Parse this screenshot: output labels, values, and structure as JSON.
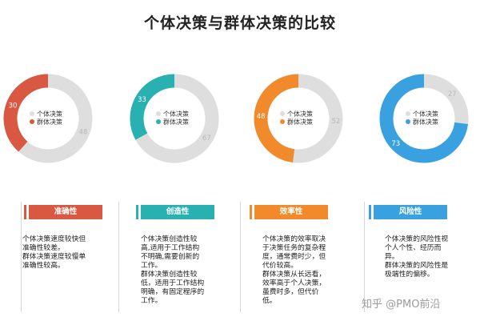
{
  "title": "个体决策与群体决策的比较",
  "legend": {
    "individual": "个体决策",
    "group": "群体决策"
  },
  "chart_data": [
    {
      "type": "pie",
      "slices": [
        {
          "label": "个体决策",
          "value": 48
        },
        {
          "label": "群体决策",
          "value": 30
        }
      ],
      "accent": "#d95842"
    },
    {
      "type": "pie",
      "slices": [
        {
          "label": "个体决策",
          "value": 67
        },
        {
          "label": "群体决策",
          "value": 33
        }
      ],
      "accent": "#29b0b0"
    },
    {
      "type": "pie",
      "slices": [
        {
          "label": "个体决策",
          "value": 52
        },
        {
          "label": "群体决策",
          "value": 48
        }
      ],
      "accent": "#f08a2a"
    },
    {
      "type": "pie",
      "slices": [
        {
          "label": "个体决策",
          "value": 27
        },
        {
          "label": "群体决策",
          "value": 73
        }
      ],
      "accent": "#3aa1e0"
    }
  ],
  "colors": {
    "individual": "#dedede",
    "text_on_ring": "#ffffff",
    "label_gray": "#b8b8b8"
  },
  "cards": [
    {
      "label": "准确性",
      "color": "#d95842",
      "text": "个体决策速度较快但\n准确性较差。\n群体决策速度较慢单\n准确性较高。"
    },
    {
      "label": "创造性",
      "color": "#29b0b0",
      "text": "个体决策创造性较\n高,适用于工作结构\n不明确,需要创新的\n工作。\n群体决策创造性较\n低，适用于工作结构\n明确，有固定程序的\n工作。"
    },
    {
      "label": "效率性",
      "color": "#f08a2a",
      "text": "个体决策的效率取决\n于决策任务的复杂程\n度，通常费时少，但\n代价较高。\n群体决策从长远看，\n效率高于个人决策，\n虽费时多，但代价\n低。"
    },
    {
      "label": "风险性",
      "color": "#3aa1e0",
      "text": "个体决策的风险性视\n个人个性、经历而\n异。\n群体决策的风险性是\n极端性的偏移。"
    }
  ],
  "watermark": "知乎 @PMO前沿"
}
